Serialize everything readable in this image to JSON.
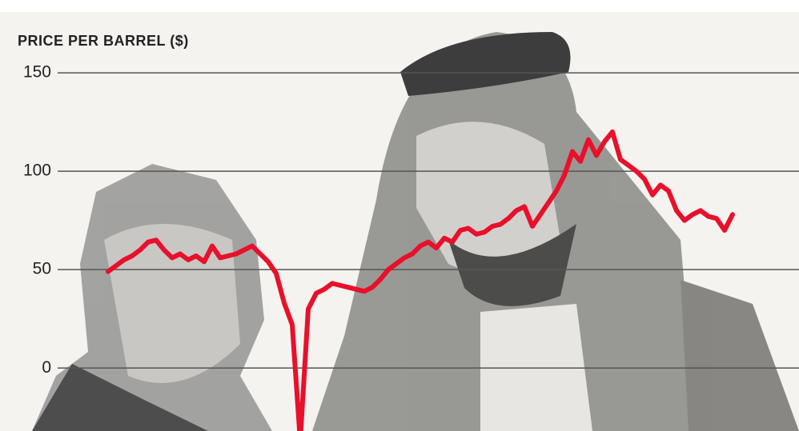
{
  "chart_data": {
    "type": "line",
    "title": "PRICE PER BARREL ($)",
    "series": [
      {
        "color": "#e8102a",
        "values": [
          49,
          52,
          55,
          57,
          60,
          64,
          65,
          60,
          56,
          58,
          55,
          57,
          54,
          62,
          56,
          57,
          58,
          60,
          62,
          58,
          54,
          48,
          33,
          22,
          -37,
          30,
          38,
          40,
          43,
          42,
          41,
          40,
          39,
          41,
          45,
          50,
          53,
          56,
          58,
          62,
          64,
          61,
          66,
          64,
          70,
          71,
          68,
          69,
          72,
          73,
          76,
          80,
          82,
          72,
          78,
          84,
          90,
          98,
          110,
          105,
          116,
          108,
          115,
          120,
          106,
          103,
          100,
          96,
          88,
          93,
          90,
          80,
          75,
          78,
          80,
          77,
          76,
          70,
          78
        ]
      }
    ],
    "ylim": [
      -32,
      187
    ],
    "yticks": [
      0,
      50,
      100,
      150
    ],
    "grid": true
  }
}
